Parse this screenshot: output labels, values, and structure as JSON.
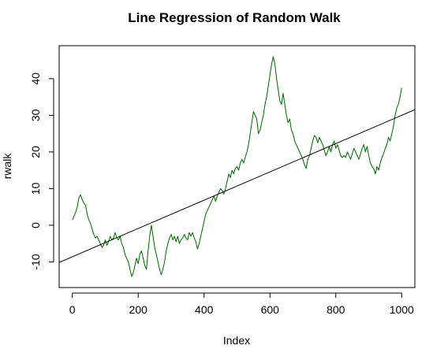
{
  "chart_data": {
    "type": "line",
    "title": "Line Regression of Random Walk",
    "xlabel": "Index",
    "ylabel": "rwalk",
    "xlim": [
      -40,
      1040
    ],
    "ylim": [
      -17,
      49
    ],
    "xticks": [
      0,
      200,
      400,
      600,
      800,
      1000
    ],
    "yticks": [
      -10,
      0,
      10,
      20,
      30,
      40
    ],
    "grid": false,
    "legend": "none",
    "series": [
      {
        "color": "#006400",
        "points": [
          [
            1,
            1.5
          ],
          [
            5,
            2.5
          ],
          [
            10,
            3.5
          ],
          [
            15,
            5
          ],
          [
            20,
            7.5
          ],
          [
            25,
            8.3
          ],
          [
            30,
            7
          ],
          [
            35,
            6
          ],
          [
            40,
            5.5
          ],
          [
            45,
            3
          ],
          [
            50,
            1.5
          ],
          [
            55,
            0.5
          ],
          [
            60,
            -1
          ],
          [
            65,
            -2.5
          ],
          [
            70,
            -3.5
          ],
          [
            75,
            -3
          ],
          [
            80,
            -4
          ],
          [
            85,
            -5
          ],
          [
            90,
            -6
          ],
          [
            95,
            -5.5
          ],
          [
            100,
            -4
          ],
          [
            105,
            -5.5
          ],
          [
            110,
            -4.5
          ],
          [
            115,
            -3
          ],
          [
            120,
            -4
          ],
          [
            125,
            -3.5
          ],
          [
            130,
            -2
          ],
          [
            135,
            -3.5
          ],
          [
            140,
            -4
          ],
          [
            145,
            -3
          ],
          [
            150,
            -5
          ],
          [
            155,
            -6
          ],
          [
            160,
            -8
          ],
          [
            165,
            -9
          ],
          [
            170,
            -10
          ],
          [
            175,
            -12
          ],
          [
            180,
            -14
          ],
          [
            185,
            -13
          ],
          [
            190,
            -11
          ],
          [
            195,
            -9
          ],
          [
            200,
            -10.5
          ],
          [
            205,
            -8
          ],
          [
            210,
            -7
          ],
          [
            215,
            -9
          ],
          [
            220,
            -11
          ],
          [
            225,
            -12
          ],
          [
            230,
            -7
          ],
          [
            235,
            -3
          ],
          [
            240,
            0
          ],
          [
            245,
            -3
          ],
          [
            250,
            -6
          ],
          [
            255,
            -8
          ],
          [
            260,
            -10
          ],
          [
            265,
            -12
          ],
          [
            270,
            -13.5
          ],
          [
            275,
            -12
          ],
          [
            280,
            -10
          ],
          [
            285,
            -7
          ],
          [
            290,
            -5
          ],
          [
            295,
            -3.5
          ],
          [
            300,
            -2.5
          ],
          [
            305,
            -4
          ],
          [
            310,
            -3
          ],
          [
            315,
            -4.5
          ],
          [
            320,
            -3
          ],
          [
            325,
            -5
          ],
          [
            330,
            -4
          ],
          [
            335,
            -3.5
          ],
          [
            340,
            -2.5
          ],
          [
            345,
            -3.5
          ],
          [
            350,
            -4
          ],
          [
            355,
            -2
          ],
          [
            360,
            -3
          ],
          [
            365,
            -2
          ],
          [
            370,
            -3.5
          ],
          [
            375,
            -4.5
          ],
          [
            380,
            -6.5
          ],
          [
            385,
            -5
          ],
          [
            390,
            -3
          ],
          [
            395,
            -1
          ],
          [
            400,
            1
          ],
          [
            405,
            3
          ],
          [
            410,
            4
          ],
          [
            415,
            5
          ],
          [
            420,
            6
          ],
          [
            425,
            7
          ],
          [
            430,
            8
          ],
          [
            435,
            6.5
          ],
          [
            440,
            8
          ],
          [
            445,
            9
          ],
          [
            450,
            10
          ],
          [
            455,
            9.5
          ],
          [
            460,
            8.5
          ],
          [
            465,
            10
          ],
          [
            470,
            12
          ],
          [
            475,
            14
          ],
          [
            480,
            13
          ],
          [
            485,
            15
          ],
          [
            490,
            14
          ],
          [
            495,
            15.5
          ],
          [
            500,
            16
          ],
          [
            505,
            15
          ],
          [
            510,
            17
          ],
          [
            515,
            18
          ],
          [
            520,
            17
          ],
          [
            525,
            18.5
          ],
          [
            530,
            20
          ],
          [
            535,
            22
          ],
          [
            540,
            25
          ],
          [
            545,
            28
          ],
          [
            550,
            31
          ],
          [
            555,
            30
          ],
          [
            560,
            29
          ],
          [
            565,
            25
          ],
          [
            570,
            26
          ],
          [
            575,
            28
          ],
          [
            580,
            30
          ],
          [
            585,
            33
          ],
          [
            590,
            35
          ],
          [
            595,
            38
          ],
          [
            600,
            41
          ],
          [
            605,
            44
          ],
          [
            610,
            46
          ],
          [
            615,
            44
          ],
          [
            620,
            40
          ],
          [
            625,
            37
          ],
          [
            630,
            34
          ],
          [
            635,
            33
          ],
          [
            640,
            36
          ],
          [
            645,
            33
          ],
          [
            650,
            30
          ],
          [
            655,
            28
          ],
          [
            660,
            29
          ],
          [
            665,
            26
          ],
          [
            670,
            25
          ],
          [
            675,
            23
          ],
          [
            680,
            22
          ],
          [
            685,
            21
          ],
          [
            690,
            20
          ],
          [
            695,
            19
          ],
          [
            700,
            18
          ],
          [
            705,
            16.5
          ],
          [
            710,
            15.5
          ],
          [
            715,
            18
          ],
          [
            720,
            19
          ],
          [
            725,
            21
          ],
          [
            730,
            23
          ],
          [
            735,
            24.5
          ],
          [
            740,
            24
          ],
          [
            745,
            22.5
          ],
          [
            750,
            24
          ],
          [
            755,
            23
          ],
          [
            760,
            22
          ],
          [
            765,
            20.5
          ],
          [
            770,
            19
          ],
          [
            775,
            20
          ],
          [
            780,
            21.5
          ],
          [
            785,
            20
          ],
          [
            790,
            22
          ],
          [
            795,
            23
          ],
          [
            800,
            21
          ],
          [
            805,
            22
          ],
          [
            810,
            20.5
          ],
          [
            815,
            19
          ],
          [
            820,
            18.5
          ],
          [
            825,
            19
          ],
          [
            830,
            18.5
          ],
          [
            835,
            20
          ],
          [
            840,
            19
          ],
          [
            845,
            18
          ],
          [
            850,
            19.5
          ],
          [
            855,
            21
          ],
          [
            860,
            20
          ],
          [
            865,
            19
          ],
          [
            870,
            18
          ],
          [
            875,
            19.5
          ],
          [
            880,
            21
          ],
          [
            885,
            22
          ],
          [
            890,
            20
          ],
          [
            895,
            21.5
          ],
          [
            900,
            19
          ],
          [
            905,
            17
          ],
          [
            910,
            16
          ],
          [
            915,
            15.5
          ],
          [
            920,
            14
          ],
          [
            925,
            16
          ],
          [
            930,
            15
          ],
          [
            935,
            17
          ],
          [
            940,
            18.5
          ],
          [
            945,
            19.5
          ],
          [
            950,
            21
          ],
          [
            955,
            22
          ],
          [
            960,
            24
          ],
          [
            965,
            23
          ],
          [
            970,
            25
          ],
          [
            975,
            27
          ],
          [
            980,
            30
          ],
          [
            985,
            32
          ],
          [
            990,
            33
          ],
          [
            995,
            35
          ],
          [
            1000,
            37.5
          ]
        ]
      }
    ],
    "regression_line": {
      "color": "#000000",
      "intercept": -8.6,
      "slope": 0.0386
    }
  }
}
